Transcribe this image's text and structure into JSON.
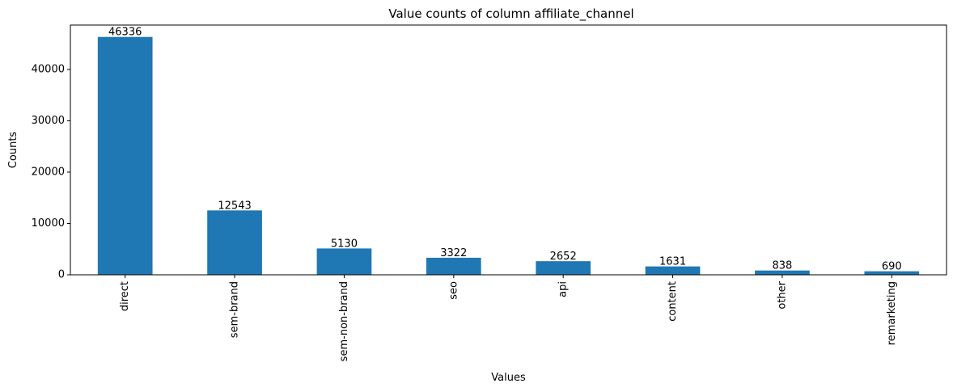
{
  "chart_data": {
    "type": "bar",
    "title": "Value counts of column affiliate_channel",
    "xlabel": "Values",
    "ylabel": "Counts",
    "categories": [
      "direct",
      "sem-brand",
      "sem-non-brand",
      "seo",
      "api",
      "content",
      "other",
      "remarketing"
    ],
    "values": [
      46336,
      12543,
      5130,
      3322,
      2652,
      1631,
      838,
      690
    ],
    "data_labels": [
      "46336",
      "12543",
      "5130",
      "3322",
      "2652",
      "1631",
      "838",
      "690"
    ],
    "yticks": [
      0,
      10000,
      20000,
      30000,
      40000
    ],
    "ytick_labels": [
      "0",
      "10000",
      "20000",
      "30000",
      "40000"
    ],
    "ylim": [
      0,
      48653
    ],
    "bar_color": "#1f77b4",
    "grid": false,
    "legend": "none",
    "xtick_rotation": "vertical"
  }
}
